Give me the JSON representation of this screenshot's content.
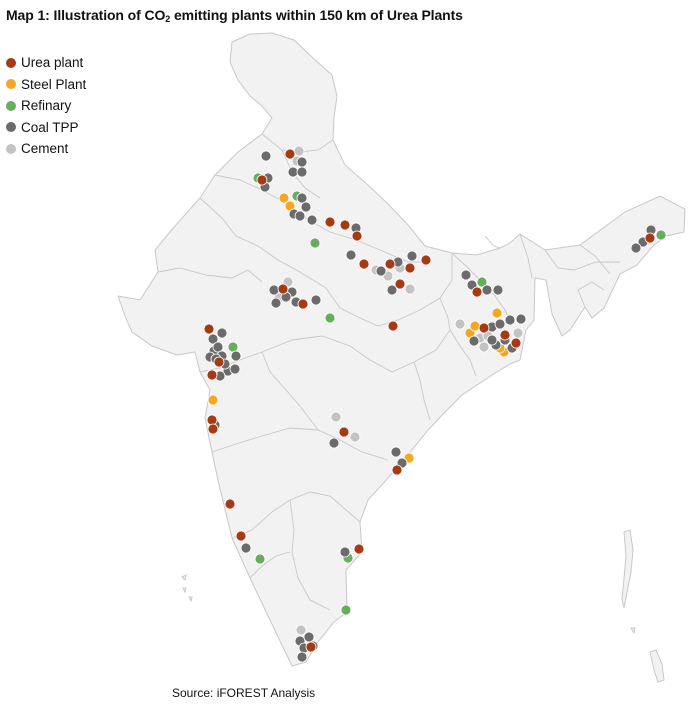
{
  "title": {
    "prefix": "Map 1: Illustration of CO",
    "subscript": "2",
    "suffix": " emitting plants within 150 km of Urea Plants"
  },
  "legend": [
    {
      "key": "urea",
      "label": "Urea plant",
      "color": "#a63a12"
    },
    {
      "key": "steel",
      "label": "Steel Plant",
      "color": "#f5a623"
    },
    {
      "key": "refinery",
      "label": "Refinary",
      "color": "#6aac5f"
    },
    {
      "key": "coal",
      "label": "Coal TPP",
      "color": "#6b6b6b"
    },
    {
      "key": "cement",
      "label": "Cement",
      "color": "#c3c3c3"
    }
  ],
  "source": "Source: iFOREST Analysis",
  "map_style": {
    "land_fill": "#f2f2f2",
    "border_color": "#c8c8c8",
    "marker_stroke": "#ffffff"
  }
}
